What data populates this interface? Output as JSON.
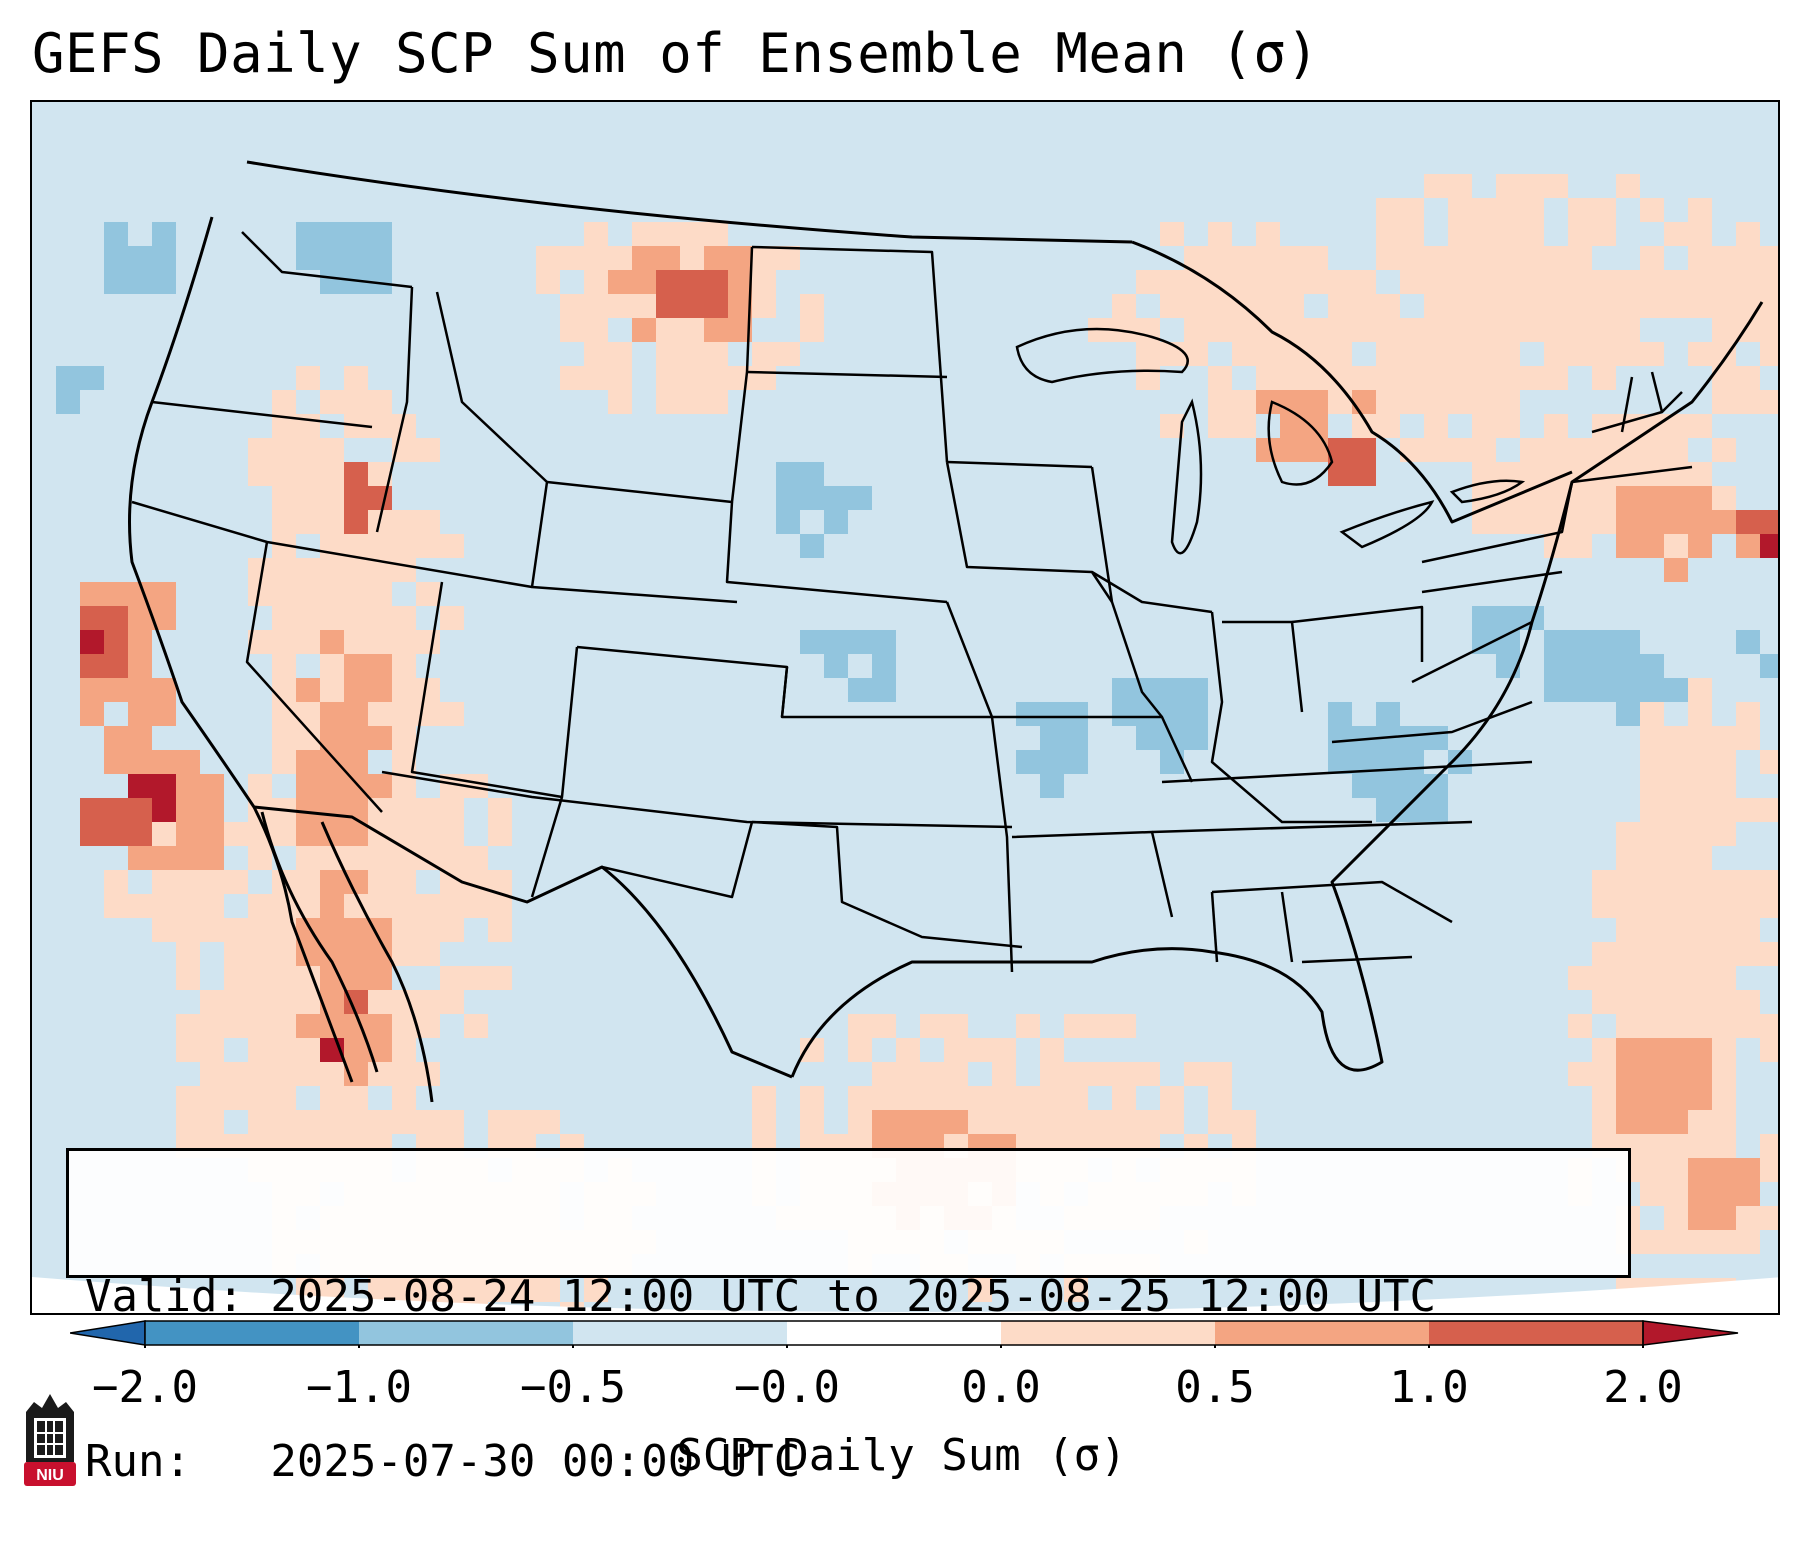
{
  "title": "GEFS Daily SCP Sum of Ensemble Mean (σ)",
  "map": {
    "projection": "Lambert conformal, CONUS",
    "background_color": "#d1e5f0",
    "anomaly_regions": [
      {
        "region": "Southern Alberta / Saskatchewan",
        "level": "1.0"
      },
      {
        "region": "Northern California coast",
        "level": "2.0"
      },
      {
        "region": "Southern California offshore",
        "level": "2.0"
      },
      {
        "region": "Gulf of California",
        "level": "2.0"
      },
      {
        "region": "Northern Michigan / Lake Huron",
        "level": "1.0"
      },
      {
        "region": "Gulf of Maine / Southern New England",
        "level": "1.0"
      },
      {
        "region": "Western Gulf of Mexico / South Texas",
        "level": "0.5"
      },
      {
        "region": "South Dakota",
        "level": "-0.5"
      },
      {
        "region": "Missouri / Illinois",
        "level": "-0.5"
      },
      {
        "region": "Virginia / West Virginia",
        "level": "-0.5"
      }
    ]
  },
  "valid_box": {
    "line1": "Valid: 2025-08-24 12:00 UTC to 2025-08-25 12:00 UTC",
    "line2": "Run:   2025-07-30 00:00 UTC"
  },
  "colorbar": {
    "label": "SCP Daily Sum (σ)",
    "ticks": [
      "−2.0",
      "−1.0",
      "−0.5",
      "−0.0",
      "0.0",
      "0.5",
      "1.0",
      "2.0"
    ],
    "colors": [
      "#2166ac",
      "#4393c3",
      "#92c5de",
      "#d1e5f0",
      "#fddbc7",
      "#f4a582",
      "#d6604d",
      "#b2182b"
    ],
    "under_color": "#2166ac",
    "over_color": "#b2182b"
  },
  "logo": {
    "text": "NIU",
    "color": "#c8102e"
  }
}
